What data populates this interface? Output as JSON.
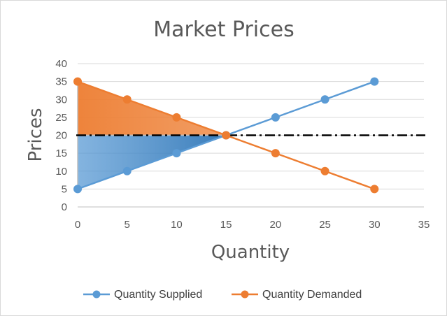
{
  "chart_data": {
    "type": "line",
    "title": "Market Prices",
    "xlabel": "Quantity",
    "ylabel": "Prices",
    "xlim": [
      0,
      35
    ],
    "ylim": [
      0,
      40
    ],
    "xticks": [
      0,
      5,
      10,
      15,
      20,
      25,
      30,
      35
    ],
    "yticks": [
      0,
      5,
      10,
      15,
      20,
      25,
      30,
      35,
      40
    ],
    "grid": "horizontal",
    "legend_position": "bottom",
    "series": [
      {
        "name": "Quantity Supplied",
        "color": "#5b9bd5",
        "x": [
          0,
          5,
          10,
          15,
          20,
          25,
          30
        ],
        "y": [
          5,
          10,
          15,
          20,
          25,
          30,
          35
        ]
      },
      {
        "name": "Quantity Demanded",
        "color": "#ed7d31",
        "x": [
          0,
          5,
          10,
          15,
          20,
          25,
          30
        ],
        "y": [
          35,
          30,
          25,
          20,
          15,
          10,
          5
        ]
      }
    ],
    "equilibrium_line": {
      "y": 20,
      "style": "dash-dot",
      "color": "#000000"
    },
    "shaded_regions": [
      {
        "label": "consumer surplus",
        "color": "#ed7d31",
        "points": [
          [
            0,
            35
          ],
          [
            0,
            20
          ],
          [
            15,
            20
          ]
        ]
      },
      {
        "label": "producer surplus",
        "color": "#5b9bd5",
        "points": [
          [
            0,
            20
          ],
          [
            0,
            5
          ],
          [
            15,
            20
          ]
        ]
      }
    ]
  }
}
